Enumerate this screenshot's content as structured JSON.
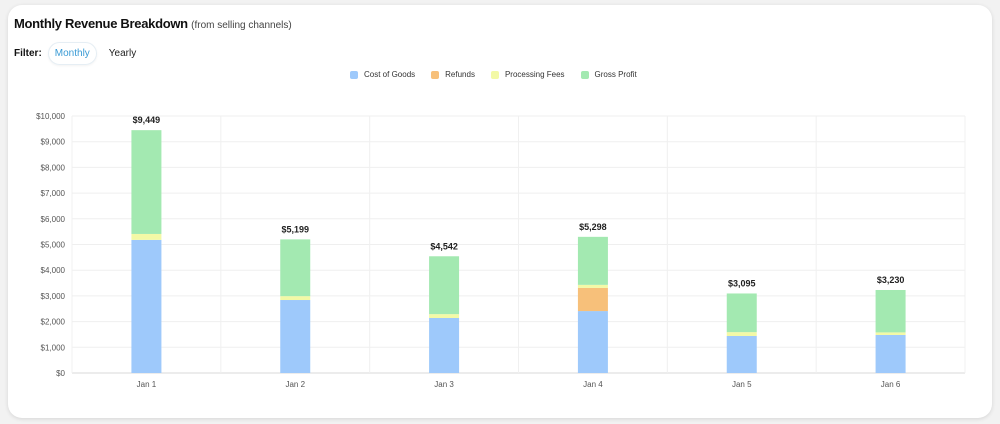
{
  "header": {
    "title": "Monthly Revenue Breakdown",
    "subtitle": "(from selling channels)"
  },
  "filter": {
    "label": "Filter:",
    "options": [
      "Monthly",
      "Yearly"
    ],
    "selected": "Monthly"
  },
  "chart_data": {
    "type": "bar",
    "stacked": true,
    "categories": [
      "Jan 1",
      "Jan 2",
      "Jan 3",
      "Jan 4",
      "Jan 5",
      "Jan 6"
    ],
    "series": [
      {
        "name": "Cost of Goods",
        "color": "#9ec9fb",
        "values": [
          5180,
          2840,
          2140,
          2410,
          1440,
          1480
        ]
      },
      {
        "name": "Refunds",
        "color": "#f7c07a",
        "values": [
          0,
          0,
          0,
          900,
          0,
          0
        ]
      },
      {
        "name": "Processing Fees",
        "color": "#f3f9a6",
        "values": [
          230,
          150,
          150,
          120,
          150,
          100
        ]
      },
      {
        "name": "Gross Profit",
        "color": "#a3e9b1",
        "values": [
          4039,
          2209,
          2252,
          1868,
          1505,
          1650
        ]
      }
    ],
    "totals": [
      "$9,449",
      "$5,199",
      "$4,542",
      "$5,298",
      "$3,095",
      "$3,230"
    ],
    "ylim": [
      0,
      10000
    ],
    "yticks": [
      "$0",
      "$1,000",
      "$2,000",
      "$3,000",
      "$4,000",
      "$5,000",
      "$6,000",
      "$7,000",
      "$8,000",
      "$9,000",
      "$10,000"
    ],
    "grid": true,
    "legend": "top-center"
  }
}
